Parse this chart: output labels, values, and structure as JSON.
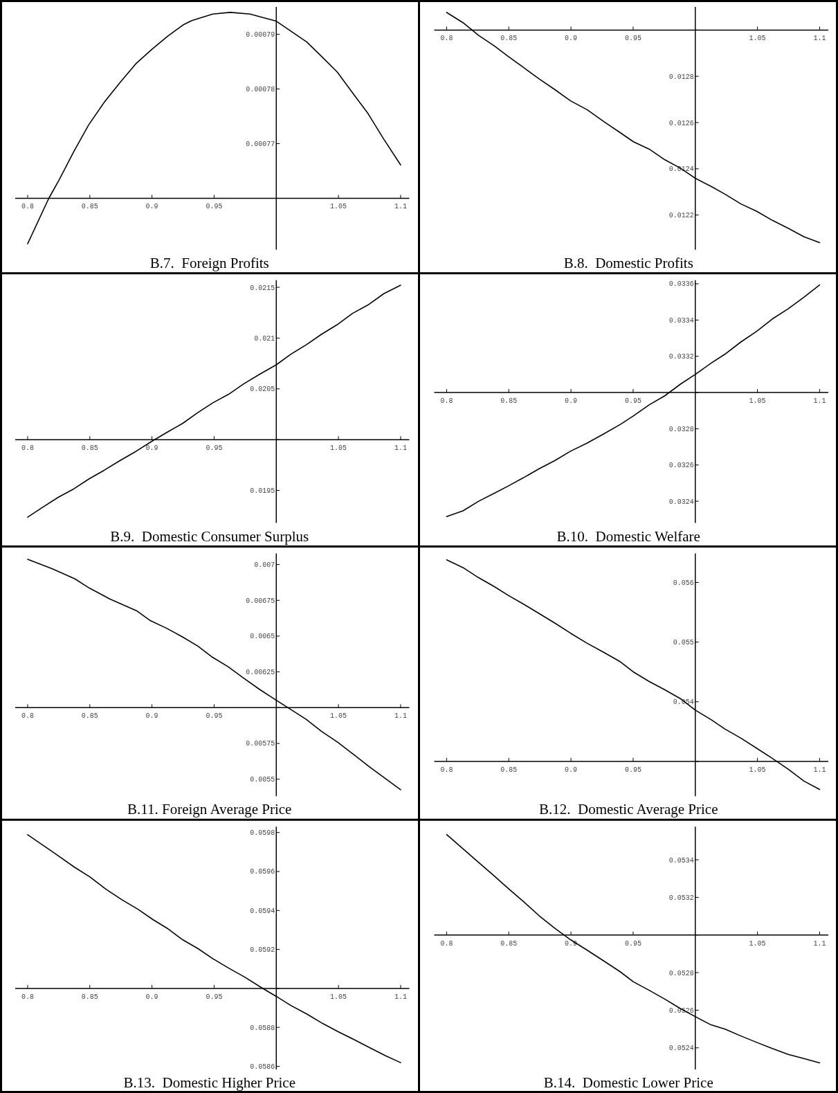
{
  "chart_data": [
    {
      "type": "line",
      "title": "B.7.  Foreign Profits",
      "color": "#000000",
      "xlim": [
        0.79,
        1.107
      ],
      "ylim": [
        0.0007506,
        0.000795
      ],
      "xticks": [
        0.8,
        0.85,
        0.9,
        0.95,
        1.05,
        1.1
      ],
      "yticks": [
        {
          "value": 0.00076,
          "label": null
        },
        0.00077,
        0.00078,
        0.00079
      ],
      "x": [
        0.8,
        0.817,
        0.8254,
        0.837,
        0.849,
        0.8617,
        0.8744,
        0.887,
        0.8997,
        0.9124,
        0.925,
        0.932,
        0.949,
        0.963,
        0.9787,
        1.0,
        1.0245,
        1.0362,
        1.049,
        1.061,
        1.0738,
        1.0865,
        1.1
      ],
      "values": [
        0.0007517,
        0.00076,
        0.0007634,
        0.0007685,
        0.0007734,
        0.0007776,
        0.0007812,
        0.0007846,
        0.0007872,
        0.0007896,
        0.0007917,
        0.0007925,
        0.0007937,
        0.000794,
        0.0007937,
        0.0007924,
        0.0007886,
        0.000786,
        0.0007831,
        0.0007794,
        0.0007755,
        0.0007708,
        0.0007661
      ]
    },
    {
      "type": "line",
      "title": "B.8.  Domestic Profits",
      "color": "#000000",
      "xlim": [
        0.79,
        1.107
      ],
      "ylim": [
        0.01205,
        0.0131
      ],
      "xticks": [
        0.8,
        0.85,
        0.9,
        0.95,
        1.05,
        1.1
      ],
      "yticks": [
        0.0122,
        0.0124,
        0.0126,
        0.0128,
        {
          "value": 0.013,
          "label": null
        }
      ],
      "x": [
        0.8,
        0.8131,
        0.8257,
        0.8384,
        0.8498,
        0.8616,
        0.8743,
        0.8869,
        0.8996,
        0.9131,
        0.927,
        0.9397,
        0.9502,
        0.9629,
        0.9755,
        0.9882,
        1.0,
        1.0127,
        1.024,
        1.0367,
        1.0494,
        1.062,
        1.0747,
        1.0874,
        1.1
      ],
      "values": [
        0.013076,
        0.013032,
        0.012977,
        0.012931,
        0.012885,
        0.012839,
        0.012789,
        0.012743,
        0.012694,
        0.012655,
        0.012602,
        0.012556,
        0.012517,
        0.012485,
        0.012439,
        0.012402,
        0.012359,
        0.012324,
        0.01229,
        0.012248,
        0.012216,
        0.012177,
        0.012143,
        0.012106,
        0.012081
      ]
    },
    {
      "type": "line",
      "title": "B.9.  Domestic Consumer Surplus",
      "color": "#000000",
      "xlim": [
        0.79,
        1.107
      ],
      "ylim": [
        0.01918,
        0.02157
      ],
      "xticks": [
        0.8,
        0.85,
        0.9,
        0.95,
        1.05,
        1.1
      ],
      "yticks": [
        0.0195,
        {
          "value": 0.02,
          "label": null
        },
        0.0205,
        0.021,
        0.0215
      ],
      "x": [
        0.8,
        0.8118,
        0.8245,
        0.8372,
        0.849,
        0.8617,
        0.8744,
        0.887,
        0.9006,
        0.9124,
        0.925,
        0.9364,
        0.949,
        0.9617,
        0.9735,
        0.987,
        1.0,
        1.0118,
        1.0245,
        1.0363,
        1.049,
        1.0612,
        1.0738,
        1.0865,
        1.1
      ],
      "values": [
        0.019237,
        0.019332,
        0.019432,
        0.019516,
        0.019611,
        0.0197,
        0.019795,
        0.019884,
        0.019989,
        0.020074,
        0.020163,
        0.020263,
        0.020363,
        0.020447,
        0.020547,
        0.020647,
        0.020737,
        0.020842,
        0.020937,
        0.021037,
        0.021132,
        0.021242,
        0.021326,
        0.021437,
        0.02152
      ]
    },
    {
      "type": "line",
      "title": "B.10.  Domestic Welfare",
      "color": "#000000",
      "xlim": [
        0.79,
        1.107
      ],
      "ylim": [
        0.03228,
        0.03362
      ],
      "xticks": [
        0.8,
        0.85,
        0.9,
        0.95,
        1.05,
        1.1
      ],
      "yticks": [
        0.0324,
        0.0326,
        0.0328,
        {
          "value": 0.033,
          "label": null
        },
        0.0332,
        0.0334,
        0.0336
      ],
      "x": [
        0.8,
        0.8131,
        0.8257,
        0.8384,
        0.8498,
        0.8616,
        0.8743,
        0.8869,
        0.8996,
        0.9131,
        0.9262,
        0.9397,
        0.9502,
        0.9629,
        0.9755,
        0.9882,
        1.0,
        1.0127,
        1.024,
        1.0367,
        1.0494,
        1.062,
        1.0747,
        1.0874,
        1.1
      ],
      "values": [
        0.032315,
        0.032347,
        0.0324,
        0.032444,
        0.032485,
        0.032529,
        0.032579,
        0.032624,
        0.032676,
        0.032721,
        0.032771,
        0.032824,
        0.032871,
        0.032932,
        0.032982,
        0.033047,
        0.0331,
        0.033162,
        0.033212,
        0.033279,
        0.033338,
        0.033406,
        0.033462,
        0.033526,
        0.033594
      ]
    },
    {
      "type": "line",
      "title": "B.11. Foreign Average Price",
      "color": "#000000",
      "xlim": [
        0.79,
        1.107
      ],
      "ylim": [
        0.005381,
        0.007078
      ],
      "xticks": [
        0.8,
        0.85,
        0.9,
        0.95,
        1.05,
        1.1
      ],
      "yticks": [
        0.0055,
        0.00575,
        {
          "value": 0.006,
          "label": null
        },
        0.00625,
        0.0065,
        0.00675,
        0.007
      ],
      "x": [
        0.8,
        0.8199,
        0.838,
        0.8494,
        0.8663,
        0.8875,
        0.8989,
        0.9115,
        0.9242,
        0.9369,
        0.9487,
        0.9614,
        0.9741,
        0.9868,
        1.0,
        1.012,
        1.024,
        1.0366,
        1.0493,
        1.062,
        1.0746,
        1.0873,
        1.1
      ],
      "values": [
        0.007037,
        0.00697,
        0.0069,
        0.006837,
        0.006759,
        0.006678,
        0.006607,
        0.006556,
        0.006496,
        0.00643,
        0.006352,
        0.006285,
        0.006204,
        0.006126,
        0.006052,
        0.005985,
        0.005919,
        0.005833,
        0.005759,
        0.005674,
        0.005589,
        0.005507,
        0.005426
      ]
    },
    {
      "type": "line",
      "title": "B.12.  Domestic Average Price",
      "color": "#000000",
      "xlim": [
        0.79,
        1.107
      ],
      "ylim": [
        0.052416,
        0.056487
      ],
      "xticks": [
        0.8,
        0.85,
        0.9,
        0.95,
        1.05,
        1.1
      ],
      "yticks": [
        {
          "value": 0.053,
          "label": null
        },
        0.054,
        0.055,
        0.056
      ],
      "x": [
        0.8,
        0.8131,
        0.8257,
        0.8384,
        0.8498,
        0.8616,
        0.8743,
        0.8869,
        0.8996,
        0.9131,
        0.9262,
        0.9397,
        0.9502,
        0.9629,
        0.9755,
        0.9882,
        1.0,
        1.0127,
        1.024,
        1.0367,
        1.0494,
        1.062,
        1.0747,
        1.0874,
        1.1
      ],
      "values": [
        0.05638,
        0.05625,
        0.05608,
        0.05593,
        0.05578,
        0.05564,
        0.05548,
        0.05532,
        0.05515,
        0.05498,
        0.05483,
        0.05467,
        0.0545,
        0.05434,
        0.0542,
        0.05405,
        0.05386,
        0.0537,
        0.05354,
        0.05339,
        0.05322,
        0.05305,
        0.05287,
        0.05267,
        0.05253
      ]
    },
    {
      "type": "line",
      "title": "B.13.  Domestic Higher Price",
      "color": "#000000",
      "xlim": [
        0.79,
        1.107
      ],
      "ylim": [
        0.058584,
        0.05983
      ],
      "xticks": [
        0.8,
        0.85,
        0.9,
        0.95,
        1.05,
        1.1
      ],
      "yticks": [
        0.0586,
        0.0588,
        {
          "value": 0.059,
          "label": null
        },
        0.0592,
        0.0594,
        0.0596,
        0.0598
      ],
      "x": [
        0.8,
        0.8223,
        0.8374,
        0.8503,
        0.863,
        0.8761,
        0.889,
        0.9006,
        0.9126,
        0.9246,
        0.9371,
        0.9491,
        0.962,
        0.9749,
        0.9878,
        1.0,
        1.0115,
        1.0244,
        1.0373,
        1.0501,
        1.063,
        1.0759,
        1.088,
        1.1
      ],
      "values": [
        0.059789,
        0.059691,
        0.059623,
        0.059571,
        0.059509,
        0.059454,
        0.059405,
        0.059354,
        0.059307,
        0.05925,
        0.059204,
        0.059152,
        0.059103,
        0.059057,
        0.059005,
        0.058959,
        0.058913,
        0.058869,
        0.05882,
        0.058777,
        0.058736,
        0.058693,
        0.058654,
        0.058619
      ]
    },
    {
      "type": "line",
      "title": "B.14.  Domestic Lower Price",
      "color": "#000000",
      "xlim": [
        0.79,
        1.107
      ],
      "ylim": [
        0.052285,
        0.053576
      ],
      "xticks": [
        0.8,
        0.85,
        0.9,
        0.95,
        1.05,
        1.1
      ],
      "yticks": [
        0.0524,
        0.0526,
        0.0528,
        {
          "value": 0.053,
          "label": null
        },
        0.0532,
        0.0534
      ],
      "x": [
        0.8,
        0.8131,
        0.8257,
        0.8384,
        0.8498,
        0.8616,
        0.8743,
        0.8869,
        0.8996,
        0.9131,
        0.9262,
        0.9397,
        0.9502,
        0.9629,
        0.9755,
        0.9882,
        1.0,
        1.0127,
        1.024,
        1.0367,
        1.0494,
        1.062,
        1.0747,
        1.0874,
        1.1
      ],
      "values": [
        0.053534,
        0.053459,
        0.053386,
        0.053313,
        0.053246,
        0.053179,
        0.053103,
        0.053036,
        0.052975,
        0.052919,
        0.052863,
        0.052804,
        0.052751,
        0.052706,
        0.052659,
        0.052608,
        0.052566,
        0.052522,
        0.052499,
        0.052463,
        0.052429,
        0.052396,
        0.052365,
        0.052343,
        0.05232
      ]
    }
  ]
}
